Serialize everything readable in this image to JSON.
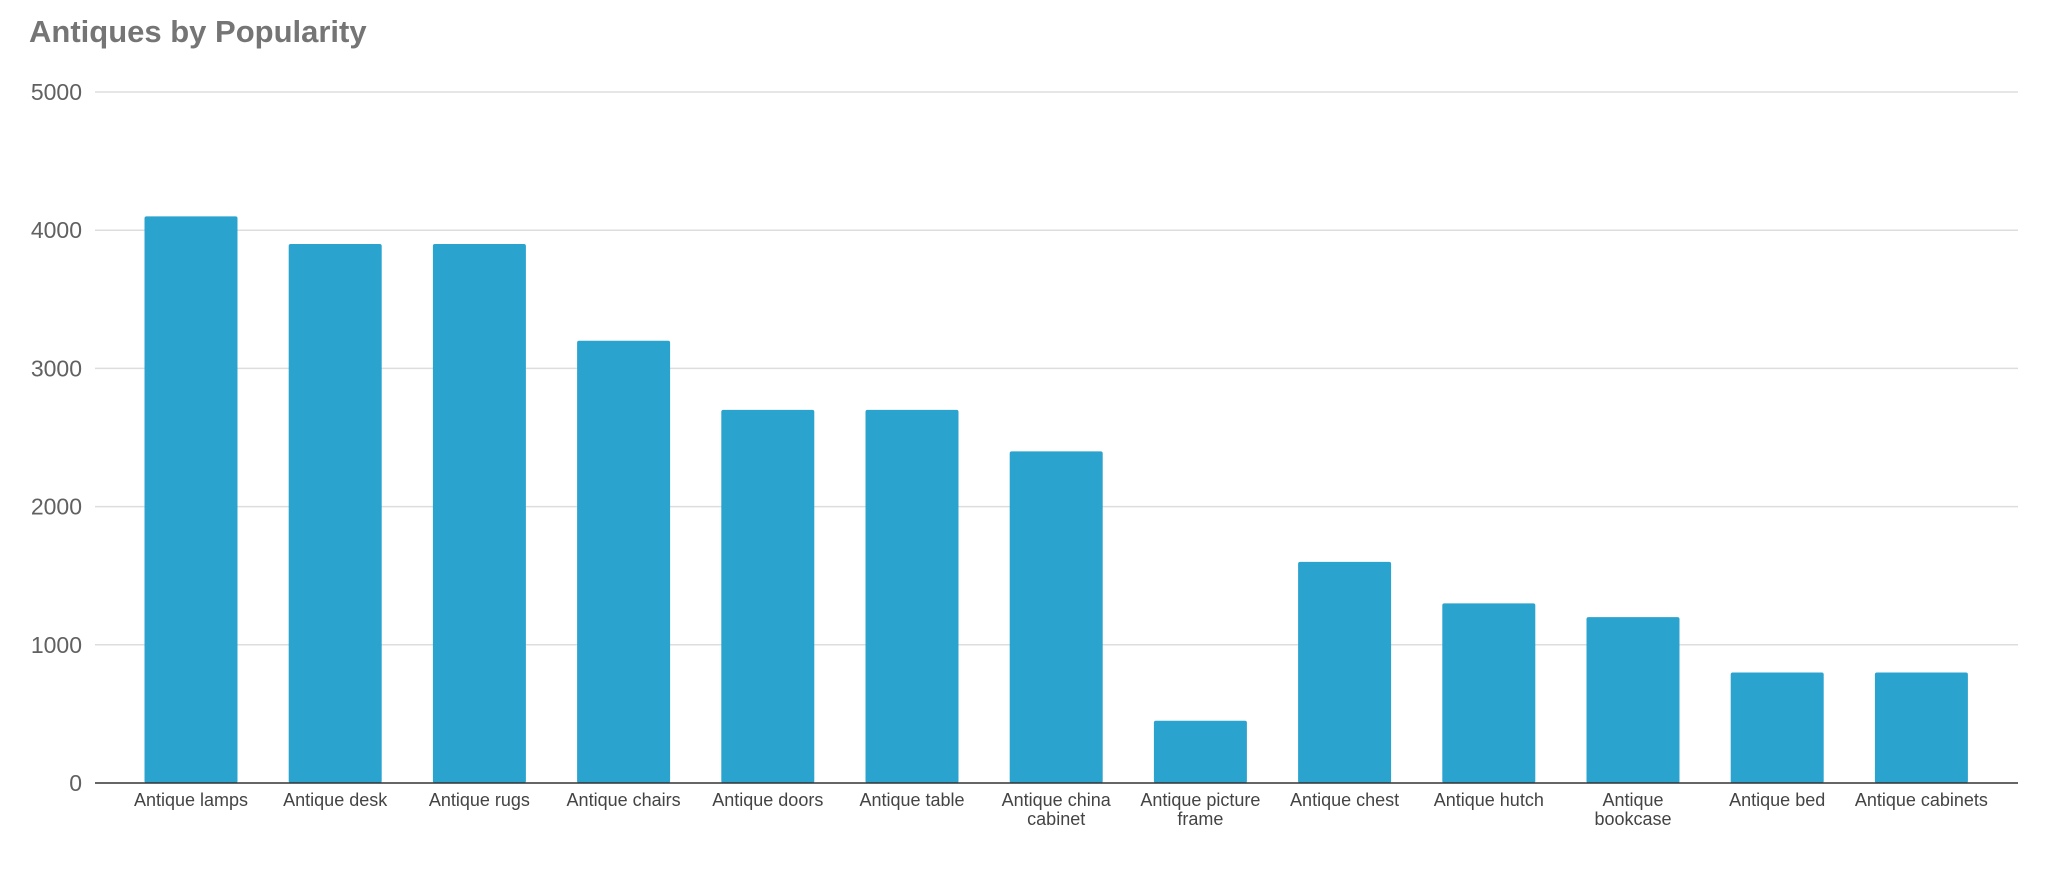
{
  "chart_data": {
    "type": "bar",
    "title": "Antiques by Popularity",
    "xlabel": "",
    "ylabel": "",
    "categories": [
      [
        "Antique lamps"
      ],
      [
        "Antique desk"
      ],
      [
        "Antique rugs"
      ],
      [
        "Antique chairs"
      ],
      [
        "Antique doors"
      ],
      [
        "Antique table"
      ],
      [
        "Antique china",
        "cabinet"
      ],
      [
        "Antique picture",
        "frame"
      ],
      [
        "Antique chest"
      ],
      [
        "Antique hutch"
      ],
      [
        "Antique",
        "bookcase"
      ],
      [
        "Antique bed"
      ],
      [
        "Antique cabinets"
      ]
    ],
    "values": [
      4100,
      3900,
      3900,
      3200,
      2700,
      2700,
      2400,
      450,
      1600,
      1300,
      1200,
      800,
      800
    ],
    "ylim": [
      0,
      5000
    ],
    "yticks": [
      0,
      1000,
      2000,
      3000,
      4000,
      5000
    ],
    "grid": true,
    "legend": "none",
    "bar_color": "#2ba3cf",
    "grid_color": "#dddddd",
    "axis_color": "#333333"
  }
}
